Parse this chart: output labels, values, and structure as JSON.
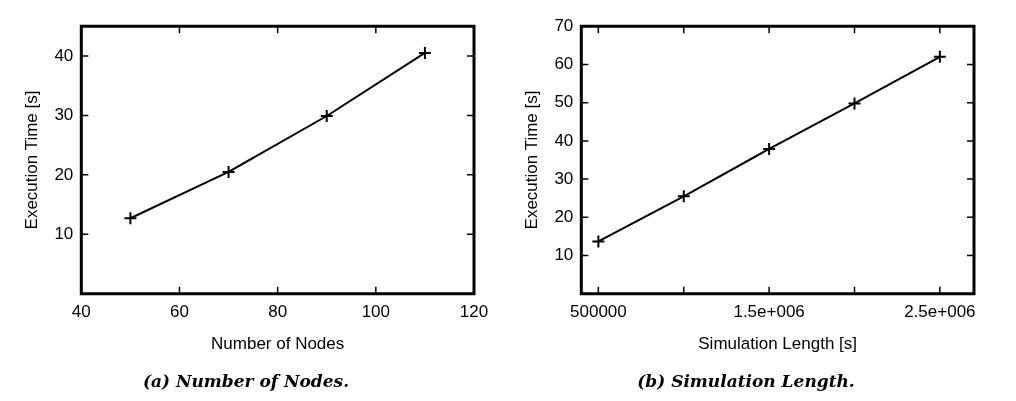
{
  "chart_data": [
    {
      "type": "line",
      "title": "(a) Number of Nodes.",
      "xlabel": "Number of Nodes",
      "ylabel": "Execution Time [s]",
      "x": [
        50,
        70,
        90,
        110
      ],
      "xlim": [
        40,
        120
      ],
      "ylim": [
        0,
        45
      ],
      "xticks": [
        40,
        60,
        80,
        100,
        120
      ],
      "yticks": [
        10,
        20,
        30,
        40
      ],
      "marker": "cross",
      "grid": false,
      "series": [
        {
          "color": "#000000",
          "values": [
            12.7,
            20.5,
            29.9,
            40.5
          ]
        }
      ]
    },
    {
      "type": "line",
      "title": "(b) Simulation Length.",
      "xlabel": "Simulation Length [s]",
      "ylabel": "Execution Time [s]",
      "x": [
        500000,
        1000000,
        1500000,
        2000000,
        2500000
      ],
      "xlim": [
        400000,
        2700000
      ],
      "ylim": [
        0,
        70
      ],
      "xticks": [
        {
          "value": 500000,
          "label": "500000"
        },
        {
          "value": 1000000,
          "label": null
        },
        {
          "value": 1500000,
          "label": "1.5e+006"
        },
        {
          "value": 2000000,
          "label": null
        },
        {
          "value": 2500000,
          "label": "2.5e+006"
        }
      ],
      "yticks": [
        10,
        20,
        30,
        40,
        50,
        60,
        70
      ],
      "marker": "cross",
      "grid": false,
      "series": [
        {
          "color": "#000000",
          "values": [
            13.7,
            25.5,
            37.9,
            49.8,
            62
          ]
        }
      ]
    }
  ]
}
